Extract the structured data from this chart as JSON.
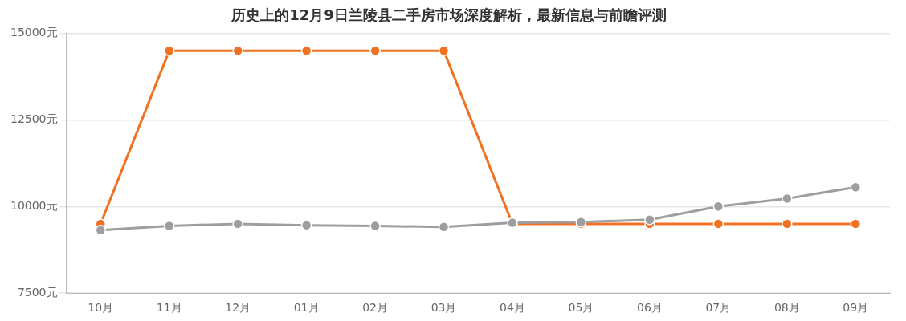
{
  "chart_data": {
    "type": "line",
    "title": "历史上的12月9日兰陵县二手房市场深度解析，最新信息与前瞻评测",
    "categories": [
      "10月",
      "11月",
      "12月",
      "01月",
      "02月",
      "03月",
      "04月",
      "05月",
      "06月",
      "07月",
      "08月",
      "09月"
    ],
    "series": [
      {
        "color": "#f07122",
        "values": [
          9500,
          14500,
          14500,
          14500,
          14500,
          14500,
          9500,
          9500,
          9500,
          9500,
          9500,
          9500
        ]
      },
      {
        "color": "#9e9e9e",
        "values": [
          9320,
          9440,
          9500,
          9460,
          9440,
          9410,
          9530,
          9550,
          9620,
          10000,
          10230,
          10560
        ]
      }
    ],
    "ylim": [
      7500,
      15000
    ],
    "yticks": [
      {
        "value": 7500,
        "label": "7500元"
      },
      {
        "value": 10000,
        "label": "10000元"
      },
      {
        "value": 12500,
        "label": "12500元"
      },
      {
        "value": 15000,
        "label": "15000元"
      }
    ],
    "grid": "y",
    "legend": false,
    "marker": "circle",
    "line_style": "solid"
  }
}
